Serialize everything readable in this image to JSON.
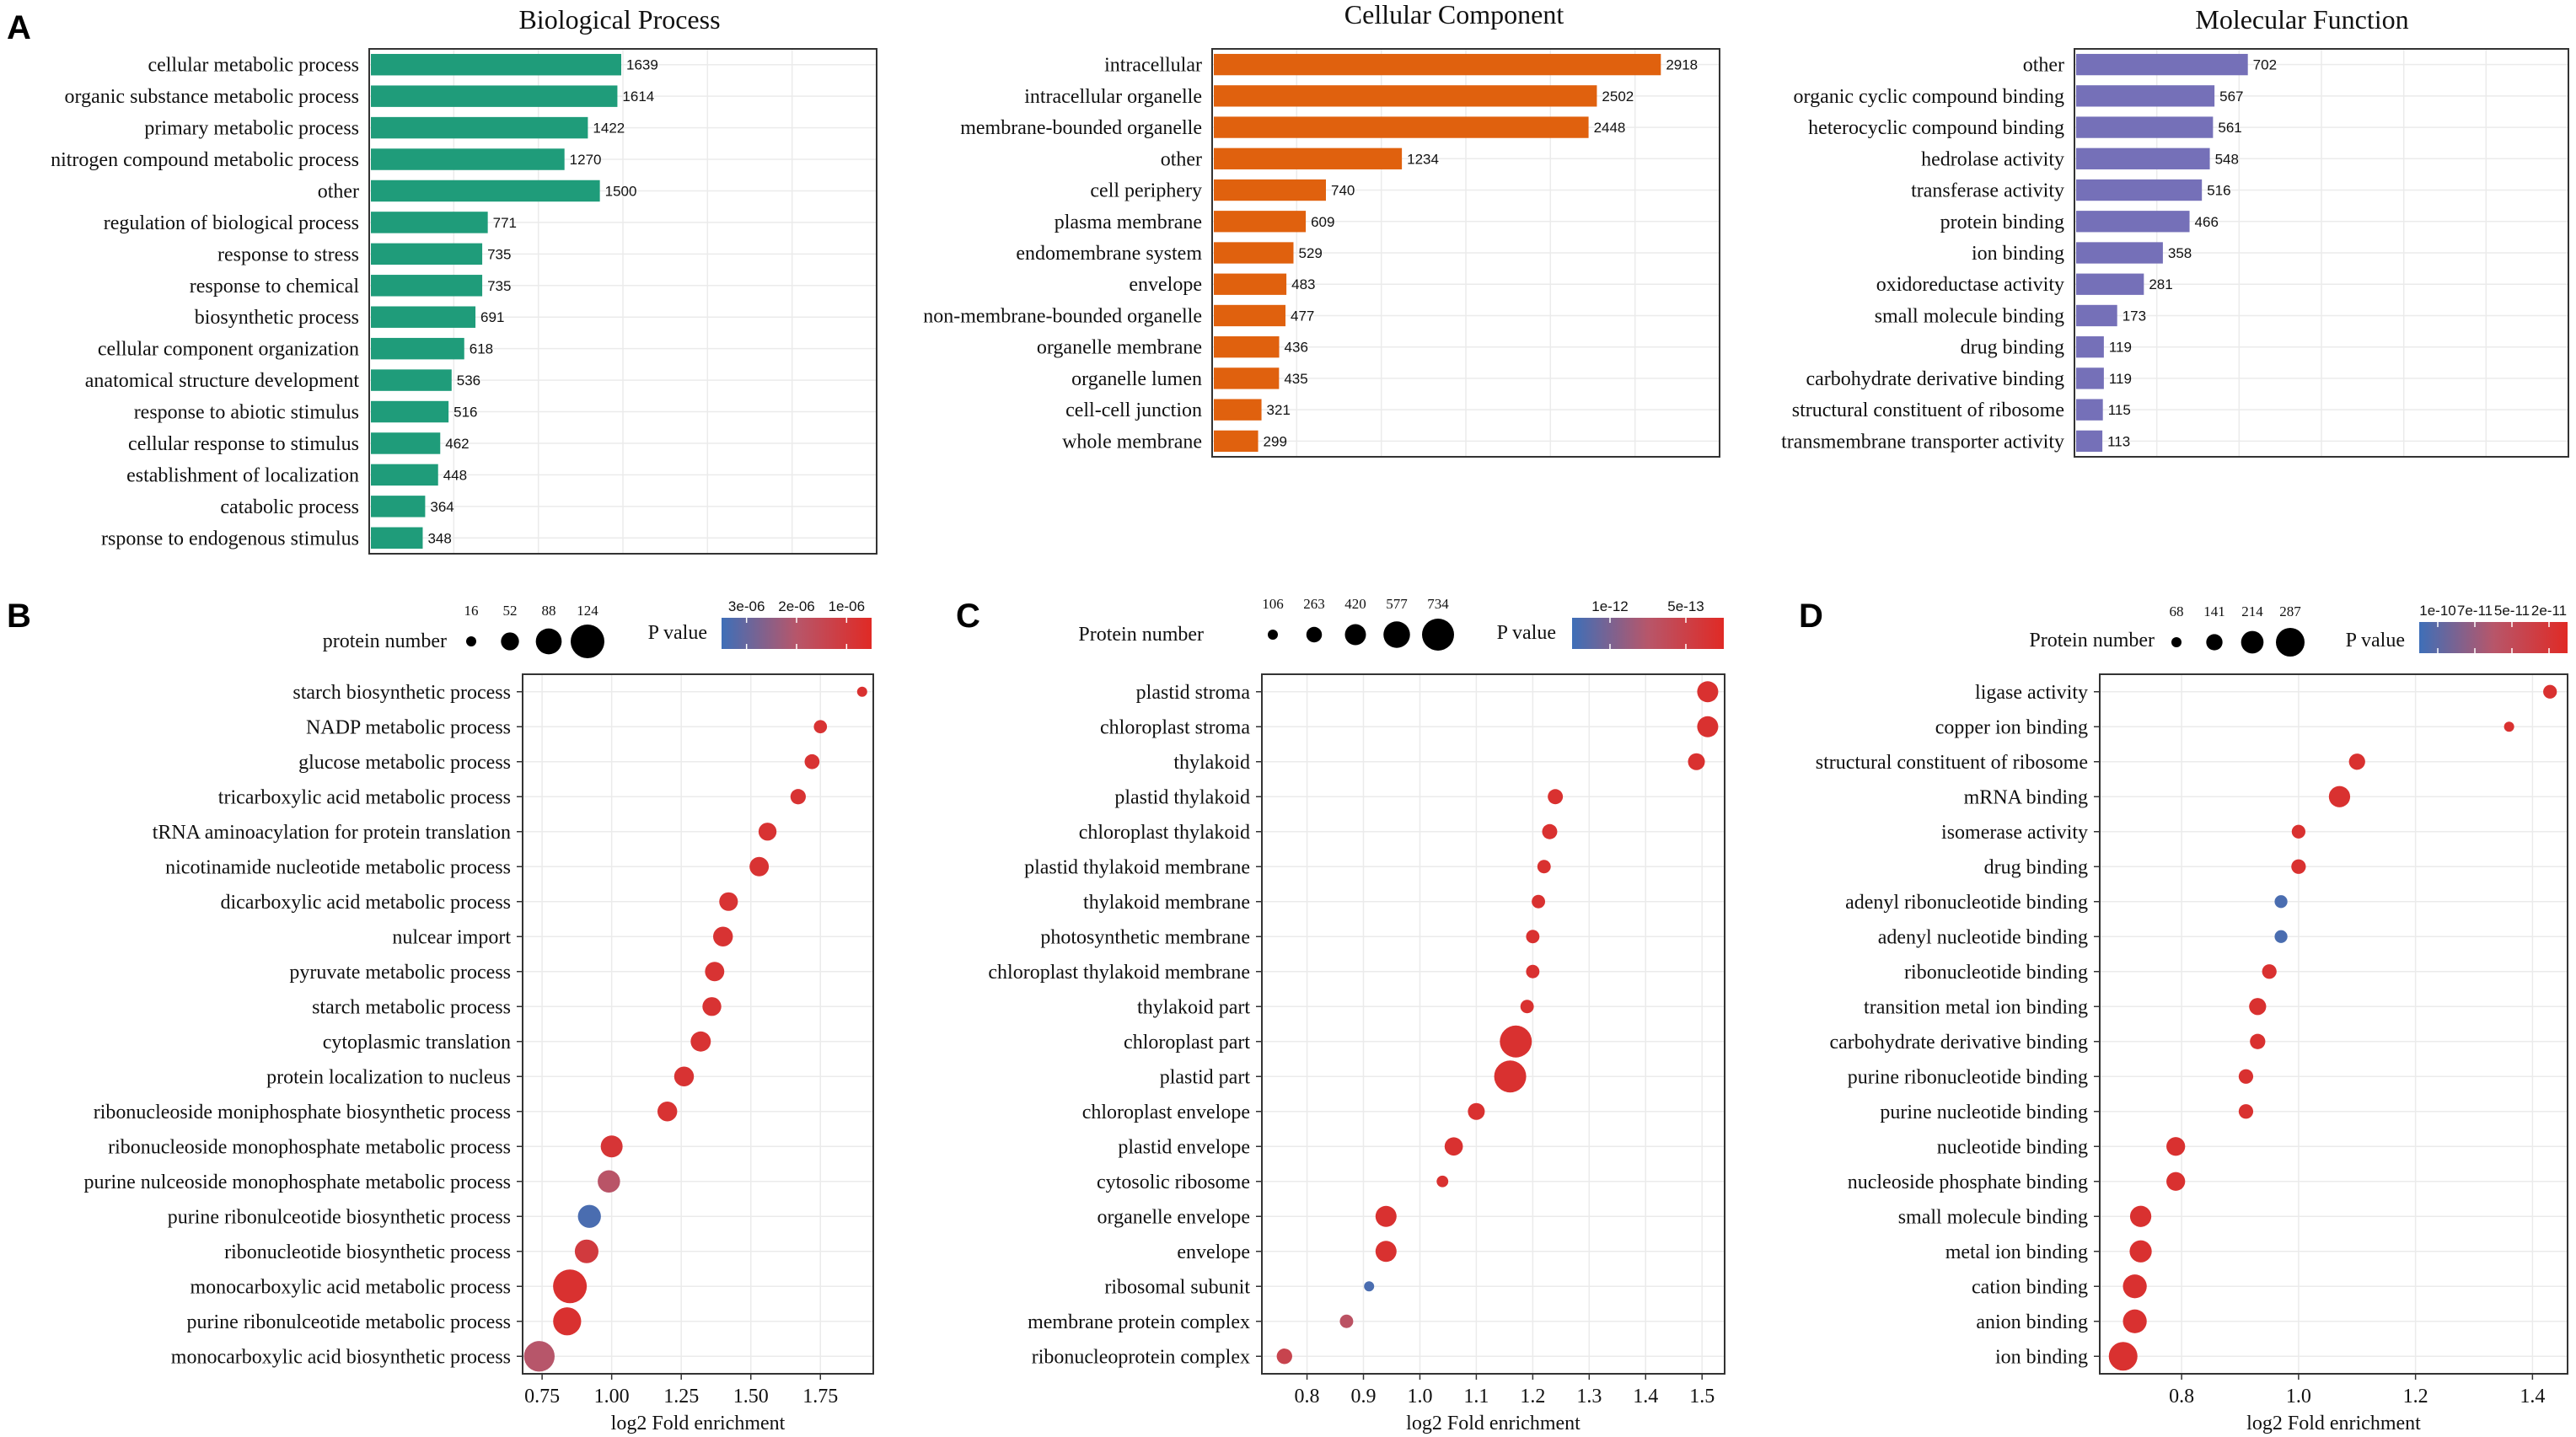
{
  "panel_letters": {
    "a": "A",
    "b": "B",
    "c": "C",
    "d": "D"
  },
  "colors": {
    "bp_bar": "#1f9c7a",
    "cc_bar": "#e0610e",
    "mf_bar": "#7570b8",
    "p_low": "#3e6fb8",
    "p_mid": "#b7566a",
    "p_high": "#e02a25",
    "grid": "#ebebeb",
    "frame": "#333333"
  },
  "chart_data": [
    {
      "id": "bp",
      "type": "bar",
      "panel": "A",
      "title": "Biological Process",
      "categories": [
        "cellular metabolic process",
        "organic substance metabolic process",
        "primary metabolic process",
        "nitrogen compound metabolic process",
        "other",
        "regulation of biological process",
        "response to stress",
        "response to chemical",
        "biosynthetic process",
        "cellular component organization",
        "anatomical structure development",
        "response to abiotic stimulus",
        "cellular response to stimulus",
        "establishment of localization",
        "catabolic process",
        "rsponse to endogenous stimulus"
      ],
      "values": [
        1639,
        1614,
        1422,
        1270,
        1500,
        771,
        735,
        735,
        691,
        618,
        536,
        516,
        462,
        448,
        364,
        348
      ],
      "xlim": [
        0,
        3300
      ],
      "color_key": "bp_bar"
    },
    {
      "id": "cc",
      "type": "bar",
      "panel": "A",
      "title": "Cellular Component",
      "categories": [
        "intracellular",
        "intracellular organelle",
        "membrane-bounded organelle",
        "other",
        "cell periphery",
        "plasma membrane",
        "endomembrane system",
        "envelope",
        "non-membrane-bounded organelle",
        "organelle membrane",
        "organelle lumen",
        "cell-cell junction",
        "whole membrane"
      ],
      "values": [
        2918,
        2502,
        2448,
        1234,
        740,
        609,
        529,
        483,
        477,
        436,
        435,
        321,
        299
      ],
      "xlim": [
        0,
        3300
      ],
      "color_key": "cc_bar"
    },
    {
      "id": "mf",
      "type": "bar",
      "panel": "A",
      "title": "Molecular Function",
      "categories": [
        "other",
        "organic cyclic compound binding",
        "heterocyclic compound binding",
        "hedrolase activity",
        "transferase activity",
        "protein binding",
        "ion binding",
        "oxidoreductase activity",
        "small molecule binding",
        "drug binding",
        "carbohydrate derivative binding",
        "structural constituent of ribosome",
        "transmembrane transporter activity"
      ],
      "values": [
        702,
        567,
        561,
        548,
        516,
        466,
        358,
        281,
        173,
        119,
        119,
        115,
        113
      ],
      "xlim": [
        0,
        2000
      ],
      "color_key": "mf_bar"
    },
    {
      "id": "b",
      "type": "scatter",
      "panel": "B",
      "xlabel": "log2  Fold enrichment",
      "xlim": [
        0.68,
        1.94
      ],
      "xticks": [
        0.75,
        1.0,
        1.25,
        1.5,
        1.75
      ],
      "xtick_labels": [
        "0.75",
        "1.00",
        "1.25",
        "1.50",
        "1.75"
      ],
      "size_legend_title": "protein number",
      "size_legend": [
        16,
        52,
        88,
        124
      ],
      "size_range": [
        16,
        124
      ],
      "color_legend_title": "P value",
      "color_legend_labels": [
        "3e-06",
        "2e-06",
        "1e-06"
      ],
      "categories": [
        "starch biosynthetic process",
        "NADP metabolic process",
        "glucose metabolic process",
        "tricarboxylic acid metabolic process",
        "tRNA aminoacylation for protein translation",
        "nicotinamide nucleotide metabolic process",
        "dicarboxylic acid metabolic process",
        "nulcear import",
        "pyruvate metabolic process",
        "starch metabolic process",
        "cytoplasmic translation",
        "protein localization to nucleus",
        "ribonucleoside moniphosphate biosynthetic process",
        "ribonucleoside monophosphate metabolic process",
        "purine nulceoside monophosphate metabolic process",
        "purine ribonulceotide biosynthetic process",
        "ribonucleotide biosynthetic process",
        "monocarboxylic acid metabolic process",
        "purine ribonulceotide metabolic process",
        "monocarboxylic acid biosynthetic process"
      ],
      "x": [
        1.9,
        1.75,
        1.72,
        1.67,
        1.56,
        1.53,
        1.42,
        1.4,
        1.37,
        1.36,
        1.32,
        1.26,
        1.2,
        1.0,
        0.99,
        0.92,
        0.91,
        0.85,
        0.84,
        0.74
      ],
      "size": [
        16,
        30,
        38,
        40,
        52,
        58,
        55,
        60,
        58,
        56,
        62,
        60,
        60,
        70,
        72,
        75,
        78,
        124,
        98,
        110
      ],
      "color": [
        0.92,
        0.9,
        0.9,
        0.9,
        0.9,
        0.9,
        0.9,
        0.9,
        0.9,
        0.9,
        0.9,
        0.9,
        0.9,
        0.88,
        0.52,
        0.05,
        0.82,
        0.92,
        0.92,
        0.5
      ]
    },
    {
      "id": "c",
      "type": "scatter",
      "panel": "C",
      "xlabel": "log2  Fold enrichment",
      "xlim": [
        0.72,
        1.54
      ],
      "xticks": [
        0.8,
        0.9,
        1.0,
        1.1,
        1.2,
        1.3,
        1.4,
        1.5
      ],
      "xtick_labels": [
        "0.8",
        "0.9",
        "1.0",
        "1.1",
        "1.2",
        "1.3",
        "1.4",
        "1.5"
      ],
      "size_legend_title": "Protein number",
      "size_legend": [
        106,
        263,
        420,
        577,
        734
      ],
      "size_range": [
        106,
        734
      ],
      "color_legend_title": "P value",
      "color_legend_labels": [
        "1e-12",
        "5e-13"
      ],
      "categories": [
        "plastid stroma",
        "chloroplast stroma",
        "thylakoid",
        "plastid thylakoid",
        "chloroplast thylakoid",
        "plastid thylakoid membrane",
        "thylakoid membrane",
        "photosynthetic membrane",
        "chloroplast thylakoid membrane",
        "thylakoid part",
        "chloroplast part",
        "plastid part",
        "chloroplast envelope",
        "plastid envelope",
        "cytosolic ribosome",
        "organelle envelope",
        "envelope",
        "ribosomal subunit",
        "membrane protein complex",
        "ribonucleoprotein complex"
      ],
      "x": [
        1.51,
        1.51,
        1.49,
        1.24,
        1.23,
        1.22,
        1.21,
        1.2,
        1.2,
        1.19,
        1.17,
        1.16,
        1.1,
        1.06,
        1.04,
        0.94,
        0.94,
        0.91,
        0.87,
        0.76
      ],
      "size": [
        420,
        420,
        300,
        250,
        250,
        200,
        200,
        200,
        200,
        200,
        734,
        734,
        300,
        340,
        150,
        420,
        420,
        106,
        200,
        260
      ],
      "color": [
        0.92,
        0.92,
        0.92,
        0.92,
        0.92,
        0.92,
        0.92,
        0.92,
        0.92,
        0.92,
        0.92,
        0.92,
        0.92,
        0.92,
        0.92,
        0.92,
        0.92,
        0.05,
        0.55,
        0.7
      ]
    },
    {
      "id": "d",
      "type": "scatter",
      "panel": "D",
      "xlabel": "log2  Fold enrichment",
      "xlim": [
        0.66,
        1.46
      ],
      "xticks": [
        0.8,
        1.0,
        1.2,
        1.4
      ],
      "xtick_labels": [
        "0.8",
        "1.0",
        "1.2",
        "1.4"
      ],
      "size_legend_title": "Protein number",
      "size_legend": [
        68,
        141,
        214,
        287
      ],
      "size_range": [
        68,
        287
      ],
      "color_legend_title": "P value",
      "color_legend_labels": [
        "1e-10",
        "7e-11",
        "5e-11",
        "2e-11"
      ],
      "categories": [
        "ligase activity",
        "copper ion binding",
        "structural constituent of ribosome",
        "mRNA binding",
        "isomerase activity",
        "drug binding",
        "adenyl ribonucleotide binding",
        "adenyl nucleotide binding",
        "ribonucleotide binding",
        "transition metal ion binding",
        "carbohydrate derivative binding",
        "purine ribonucleotide binding",
        "purine nucleotide binding",
        "nucleotide binding",
        "nucleoside phosphate binding",
        "small molecule binding",
        "metal ion binding",
        "cation binding",
        "anion binding",
        "ion binding"
      ],
      "x": [
        1.43,
        1.36,
        1.1,
        1.07,
        1.0,
        1.0,
        0.97,
        0.97,
        0.95,
        0.93,
        0.93,
        0.91,
        0.91,
        0.79,
        0.79,
        0.73,
        0.73,
        0.72,
        0.72,
        0.7
      ],
      "size": [
        110,
        68,
        140,
        200,
        110,
        120,
        100,
        100,
        120,
        150,
        130,
        120,
        120,
        170,
        170,
        200,
        210,
        230,
        230,
        287
      ],
      "color": [
        0.92,
        0.92,
        0.92,
        0.92,
        0.92,
        0.92,
        0.05,
        0.05,
        0.92,
        0.92,
        0.92,
        0.92,
        0.92,
        0.92,
        0.92,
        0.92,
        0.92,
        0.92,
        0.92,
        0.92
      ]
    }
  ]
}
